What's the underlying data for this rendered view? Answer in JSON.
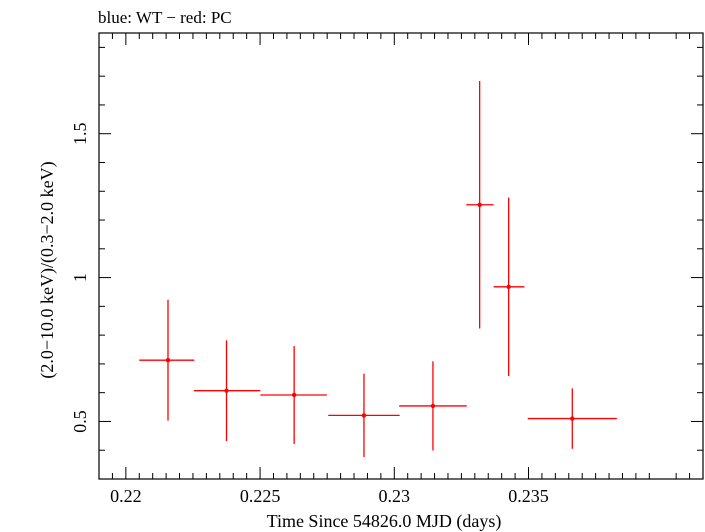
{
  "chart_data": {
    "type": "scatter",
    "title": "blue: WT − red: PC",
    "xlabel": "Time Since 54826.0 MJD (days)",
    "ylabel": "(2.0−10.0 keV)/(0.3−2.0 keV)",
    "xlim": [
      0.219,
      0.2415
    ],
    "ylim": [
      0.3,
      1.85
    ],
    "x_ticks": [
      0.22,
      0.225,
      0.23,
      0.235
    ],
    "x_tick_labels": [
      "0.22",
      "0.225",
      "0.23",
      "0.235"
    ],
    "y_ticks": [
      0.5,
      1,
      1.5
    ],
    "y_tick_labels": [
      "0.5",
      "1",
      "1.5"
    ],
    "series": [
      {
        "name": "PC",
        "color": "#ff0000",
        "points": [
          {
            "x": 0.22157,
            "xerr_lo": 0.00107,
            "xerr_hi": 0.00098,
            "y": 0.713,
            "yerr_lo": 0.21,
            "yerr_hi": 0.21
          },
          {
            "x": 0.22375,
            "xerr_lo": 0.00122,
            "xerr_hi": 0.00126,
            "y": 0.607,
            "yerr_lo": 0.175,
            "yerr_hi": 0.175
          },
          {
            "x": 0.22627,
            "xerr_lo": 0.00126,
            "xerr_hi": 0.00122,
            "y": 0.592,
            "yerr_lo": 0.17,
            "yerr_hi": 0.17
          },
          {
            "x": 0.22887,
            "xerr_lo": 0.00133,
            "xerr_hi": 0.00133,
            "y": 0.521,
            "yerr_lo": 0.145,
            "yerr_hi": 0.145
          },
          {
            "x": 0.23144,
            "xerr_lo": 0.00126,
            "xerr_hi": 0.00126,
            "y": 0.554,
            "yerr_lo": 0.155,
            "yerr_hi": 0.155
          },
          {
            "x": 0.23318,
            "xerr_lo": 0.0005,
            "xerr_hi": 0.00052,
            "y": 1.253,
            "yerr_lo": 0.43,
            "yerr_hi": 0.43
          },
          {
            "x": 0.23426,
            "xerr_lo": 0.00056,
            "xerr_hi": 0.00059,
            "y": 0.968,
            "yerr_lo": 0.31,
            "yerr_hi": 0.31
          },
          {
            "x": 0.23663,
            "xerr_lo": 0.00166,
            "xerr_hi": 0.00166,
            "y": 0.51,
            "yerr_lo": 0.105,
            "yerr_hi": 0.105
          }
        ]
      }
    ]
  }
}
